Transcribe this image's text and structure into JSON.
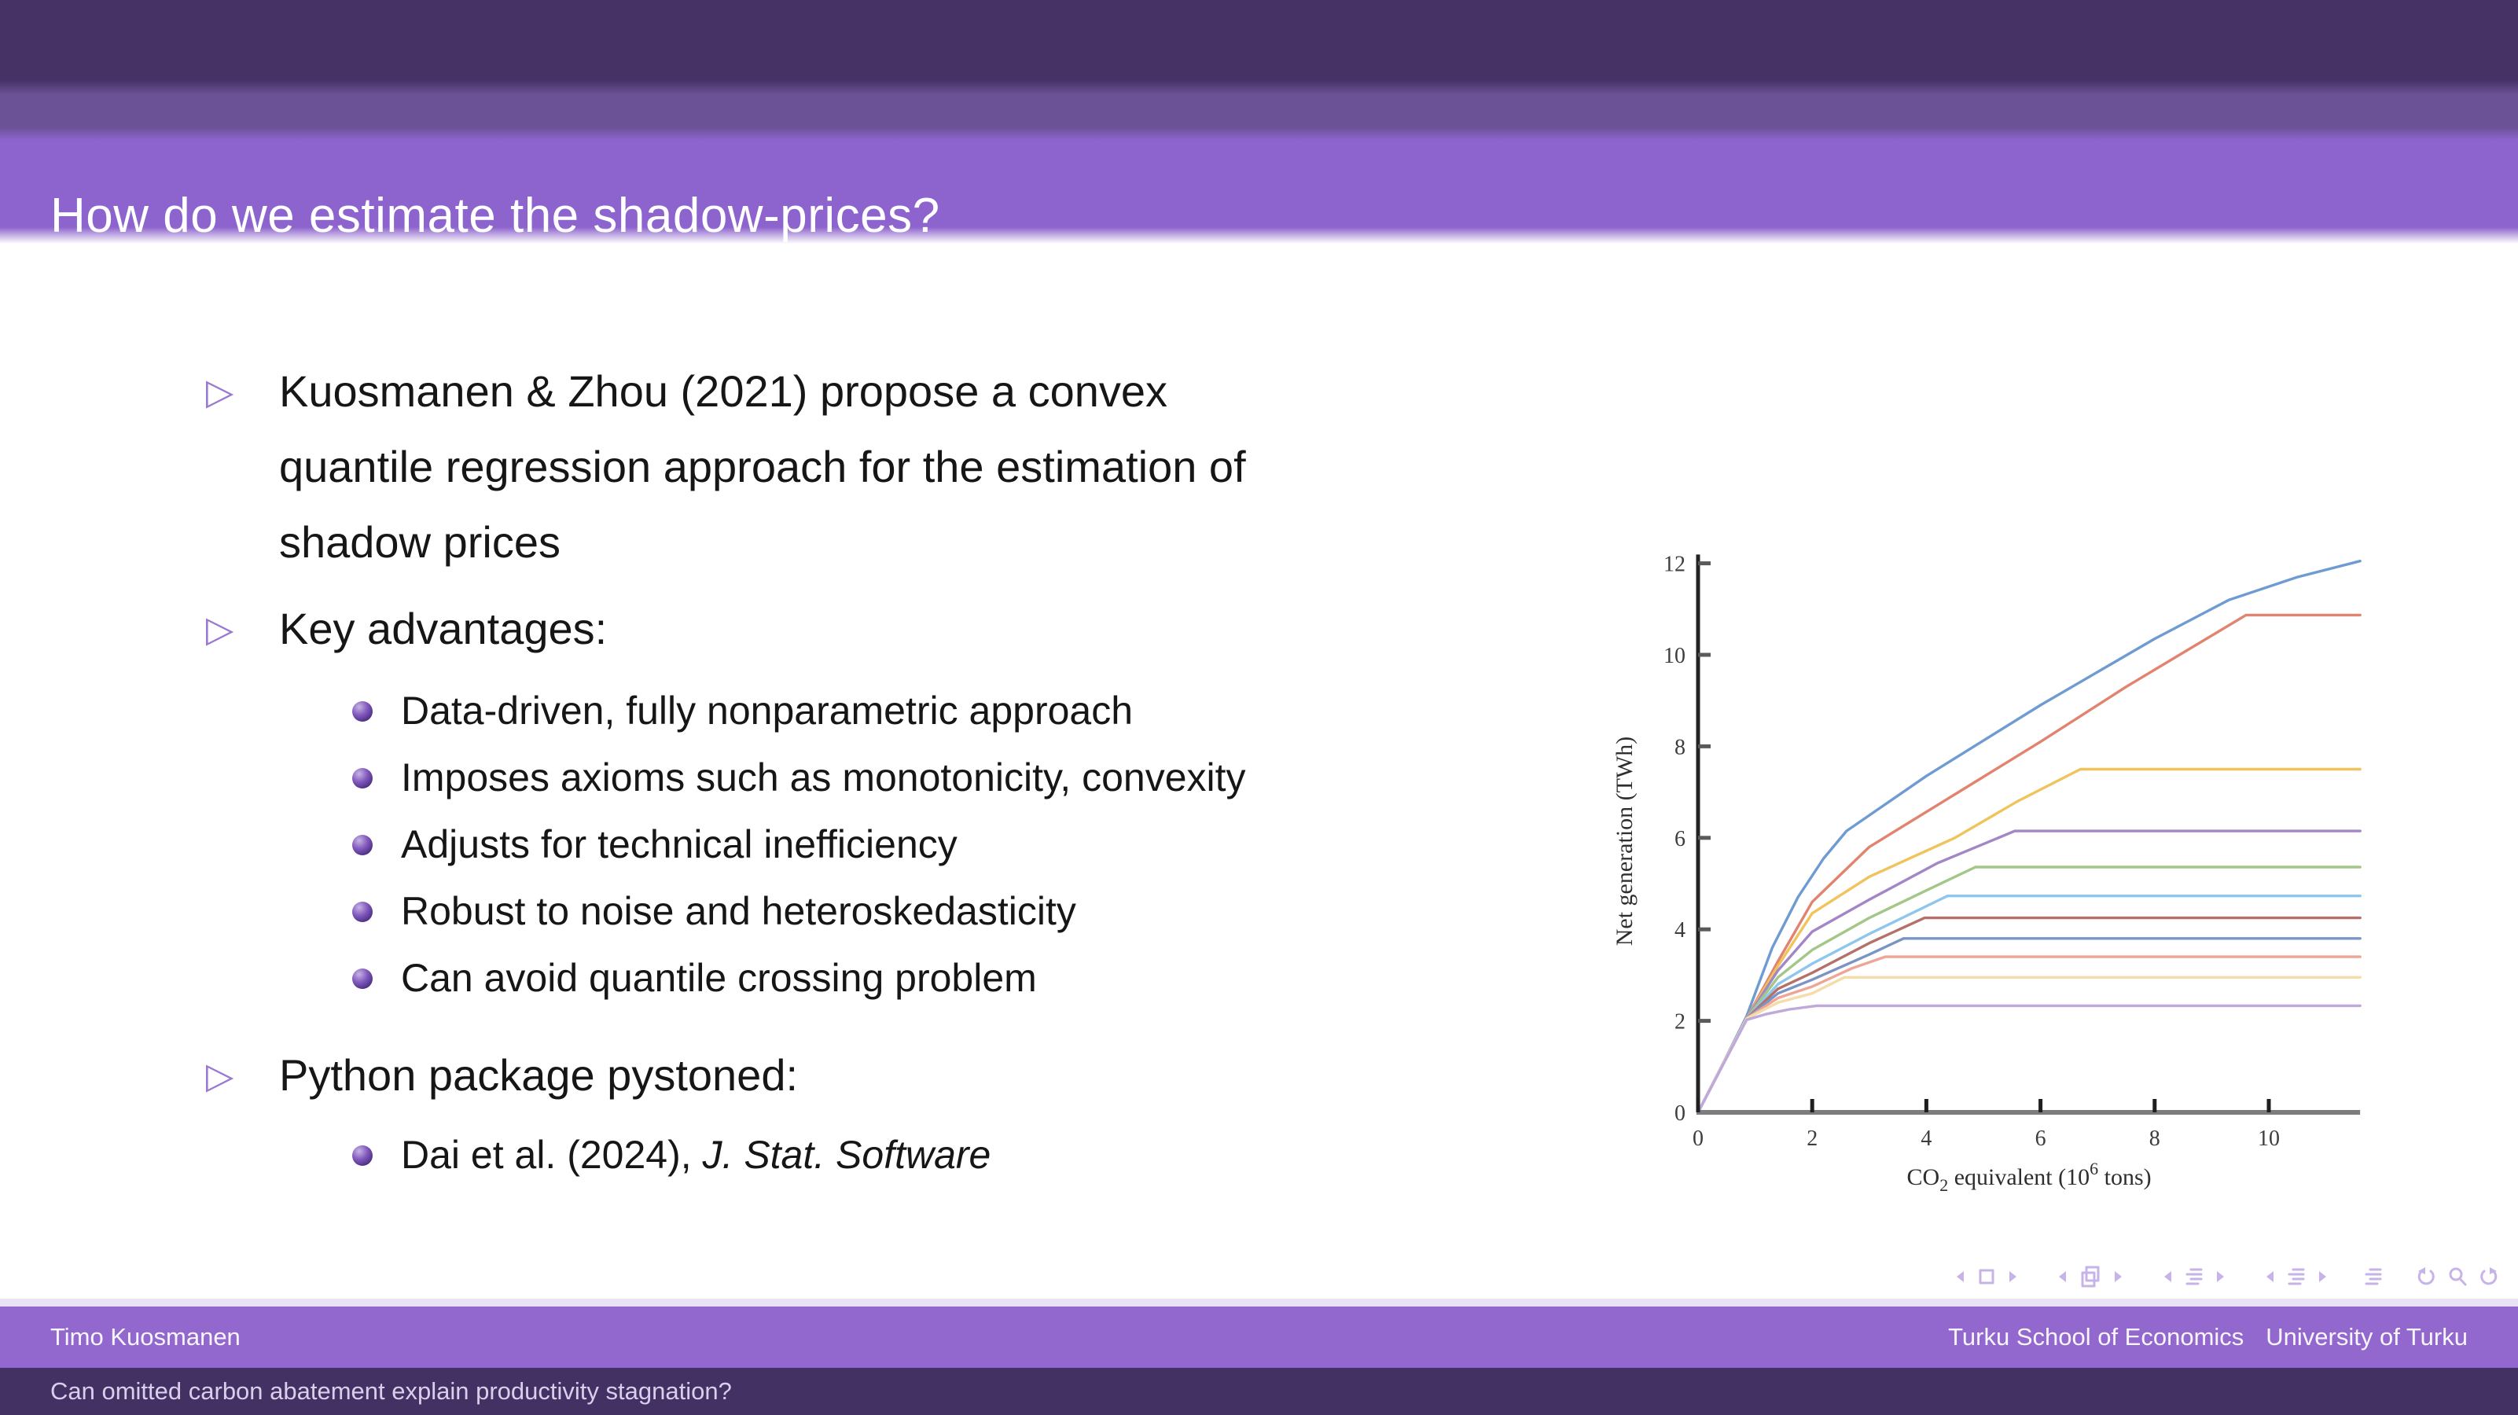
{
  "header": {
    "title": "How do we estimate the shadow-prices?"
  },
  "content": {
    "bullets": [
      {
        "marker": "▷",
        "lines": [
          "Kuosmanen & Zhou (2021) propose a convex",
          "quantile regression approach for the estimation of",
          "shadow prices"
        ]
      },
      {
        "marker": "▷",
        "lines": [
          "Key advantages:"
        ],
        "sub": [
          "Data-driven, fully nonparametric approach",
          "Imposes axioms such as monotonicity, convexity",
          "Adjusts for technical inefficiency",
          "Robust to noise and heteroskedasticity",
          "Can avoid quantile crossing problem"
        ]
      },
      {
        "marker": "▷",
        "lines": [
          "Python package pystoned:"
        ],
        "sub_parts": {
          "prefix": "Dai et al. (2024), ",
          "italic": "J. Stat. Software"
        }
      }
    ]
  },
  "footer": {
    "author": "Timo Kuosmanen",
    "institute1": "Turku School of Economics",
    "institute2": "University of Turku",
    "short_title": "Can omitted carbon abatement explain productivity stagnation?"
  },
  "nav": {
    "items": [
      "prev-slide",
      "slide",
      "next-slide",
      "prev-frame",
      "frame",
      "next-frame",
      "prev-subsection",
      "subsection",
      "next-subsection",
      "prev-section",
      "section",
      "next-section",
      "presentation",
      "back",
      "find",
      "forward"
    ]
  },
  "chart_data": {
    "type": "line",
    "title": "",
    "ylabel": "Net generation (TWh)",
    "xlabel_parts": {
      "pre": "CO",
      "sub": "2",
      "mid": " equivalent (10",
      "sup": "6",
      "post": " tons)"
    },
    "x_ticks": [
      0,
      2,
      4,
      6,
      8,
      10
    ],
    "y_ticks": [
      0,
      2,
      4,
      6,
      8,
      10,
      12
    ],
    "xlim": [
      0,
      11.6
    ],
    "ylim": [
      0,
      12.4
    ],
    "grid": false,
    "legend": "none",
    "series": [
      {
        "name": "series-1",
        "color": "#6E9BD2",
        "points": [
          [
            0,
            0
          ],
          [
            0.45,
            1.1
          ],
          [
            0.85,
            2.1
          ],
          [
            1.3,
            3.6
          ],
          [
            1.75,
            4.7
          ],
          [
            2.2,
            5.55
          ],
          [
            2.6,
            6.15
          ],
          [
            4,
            7.35
          ],
          [
            6,
            8.9
          ],
          [
            8,
            10.35
          ],
          [
            9.3,
            11.2
          ],
          [
            10.5,
            11.7
          ],
          [
            11.6,
            12.05
          ]
        ]
      },
      {
        "name": "series-2",
        "color": "#E2836F",
        "points": [
          [
            0,
            0
          ],
          [
            0.85,
            2.05
          ],
          [
            1.4,
            3.3
          ],
          [
            2,
            4.6
          ],
          [
            3,
            5.8
          ],
          [
            4.5,
            6.95
          ],
          [
            6,
            8.1
          ],
          [
            7.5,
            9.3
          ],
          [
            9.6,
            10.87
          ],
          [
            11.6,
            10.87
          ]
        ]
      },
      {
        "name": "series-3",
        "color": "#F0C45C",
        "points": [
          [
            0,
            0
          ],
          [
            0.85,
            2.05
          ],
          [
            1.4,
            3.2
          ],
          [
            2,
            4.35
          ],
          [
            3,
            5.15
          ],
          [
            4.5,
            6.0
          ],
          [
            5.6,
            6.8
          ],
          [
            6.7,
            7.5
          ],
          [
            11.6,
            7.5
          ]
        ]
      },
      {
        "name": "series-4",
        "color": "#A386C6",
        "points": [
          [
            0,
            0
          ],
          [
            0.85,
            2.05
          ],
          [
            1.4,
            3.1
          ],
          [
            2,
            3.95
          ],
          [
            3,
            4.65
          ],
          [
            4.2,
            5.45
          ],
          [
            5.55,
            6.15
          ],
          [
            11.6,
            6.15
          ]
        ]
      },
      {
        "name": "series-5",
        "color": "#A3C789",
        "points": [
          [
            0,
            0
          ],
          [
            0.85,
            2.05
          ],
          [
            1.4,
            2.95
          ],
          [
            2,
            3.55
          ],
          [
            3,
            4.25
          ],
          [
            4,
            4.85
          ],
          [
            4.86,
            5.36
          ],
          [
            11.6,
            5.36
          ]
        ]
      },
      {
        "name": "series-6",
        "color": "#8FC6EC",
        "points": [
          [
            0,
            0
          ],
          [
            0.85,
            2.05
          ],
          [
            1.4,
            2.8
          ],
          [
            2,
            3.25
          ],
          [
            3,
            3.9
          ],
          [
            4.37,
            4.73
          ],
          [
            11.6,
            4.73
          ]
        ]
      },
      {
        "name": "series-7",
        "color": "#B3716A",
        "points": [
          [
            0,
            0
          ],
          [
            0.85,
            2.05
          ],
          [
            1.4,
            2.7
          ],
          [
            2,
            3.05
          ],
          [
            3,
            3.7
          ],
          [
            3.97,
            4.25
          ],
          [
            11.6,
            4.25
          ]
        ]
      },
      {
        "name": "series-8",
        "color": "#7B94C6",
        "points": [
          [
            0,
            0
          ],
          [
            0.85,
            2.05
          ],
          [
            1.4,
            2.6
          ],
          [
            2,
            2.9
          ],
          [
            3,
            3.45
          ],
          [
            3.6,
            3.8
          ],
          [
            11.6,
            3.8
          ]
        ]
      },
      {
        "name": "series-9",
        "color": "#EFA496",
        "points": [
          [
            0,
            0
          ],
          [
            0.85,
            2.05
          ],
          [
            1.4,
            2.5
          ],
          [
            2,
            2.75
          ],
          [
            2.7,
            3.15
          ],
          [
            3.28,
            3.4
          ],
          [
            11.6,
            3.4
          ]
        ]
      },
      {
        "name": "series-10",
        "color": "#F5DCA8",
        "points": [
          [
            0,
            0
          ],
          [
            0.85,
            2.05
          ],
          [
            1.4,
            2.4
          ],
          [
            2,
            2.6
          ],
          [
            2.56,
            2.95
          ],
          [
            11.6,
            2.95
          ]
        ]
      },
      {
        "name": "series-11",
        "color": "#BFA8DA",
        "points": [
          [
            0,
            0
          ],
          [
            0.85,
            2.02
          ],
          [
            1.2,
            2.15
          ],
          [
            1.6,
            2.25
          ],
          [
            2.08,
            2.33
          ],
          [
            11.6,
            2.33
          ]
        ]
      }
    ]
  }
}
